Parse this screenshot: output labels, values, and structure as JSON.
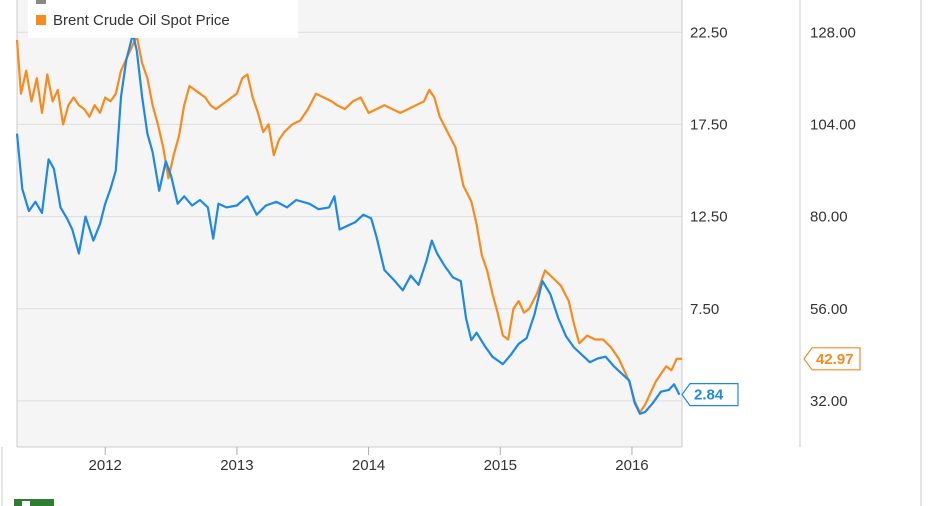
{
  "chart_data": {
    "type": "line",
    "legend": {
      "placement": "top-left"
    },
    "grid": {
      "horizontal": true,
      "vertical": false
    },
    "x_axis": {
      "range": [
        2011.33,
        2016.38
      ],
      "ticks": [
        {
          "value": 2012.0,
          "label": "2012"
        },
        {
          "value": 2013.0,
          "label": "2013"
        },
        {
          "value": 2014.0,
          "label": "2014"
        },
        {
          "value": 2015.0,
          "label": "2015"
        },
        {
          "value": 2016.0,
          "label": "2016"
        }
      ]
    },
    "y_axis_left": {
      "range": [
        0.0,
        24.25
      ],
      "ticks": [
        {
          "value": 22.5,
          "label": "22.50"
        },
        {
          "value": 17.5,
          "label": "17.50"
        },
        {
          "value": 12.5,
          "label": "12.50"
        },
        {
          "value": 7.5,
          "label": "7.50"
        },
        {
          "value": 2.5,
          "label": ""
        }
      ]
    },
    "y_axis_right": {
      "range": [
        20.0,
        136.4
      ],
      "ticks": [
        {
          "value": 128,
          "label": "128.00"
        },
        {
          "value": 104,
          "label": "104.00"
        },
        {
          "value": 80,
          "label": "80.00"
        },
        {
          "value": 56,
          "label": "56.00"
        },
        {
          "value": 32,
          "label": "32.00"
        }
      ]
    },
    "series": [
      {
        "name": "",
        "axis": "left",
        "color": "#1e88e5",
        "end_label": "2.84",
        "points": [
          [
            2011.33,
            17.0
          ],
          [
            2011.37,
            14.0
          ],
          [
            2011.42,
            12.8
          ],
          [
            2011.47,
            13.3
          ],
          [
            2011.52,
            12.7
          ],
          [
            2011.57,
            15.6
          ],
          [
            2011.61,
            15.1
          ],
          [
            2011.66,
            13.0
          ],
          [
            2011.71,
            12.4
          ],
          [
            2011.75,
            11.8
          ],
          [
            2011.8,
            10.5
          ],
          [
            2011.85,
            12.5
          ],
          [
            2011.91,
            11.2
          ],
          [
            2011.96,
            12.1
          ],
          [
            2012.0,
            13.2
          ],
          [
            2012.04,
            14.0
          ],
          [
            2012.08,
            15.0
          ],
          [
            2012.12,
            19.0
          ],
          [
            2012.16,
            21.0
          ],
          [
            2012.21,
            22.4
          ],
          [
            2012.24,
            21.5
          ],
          [
            2012.28,
            19.0
          ],
          [
            2012.32,
            17.0
          ],
          [
            2012.36,
            16.0
          ],
          [
            2012.41,
            13.9
          ],
          [
            2012.46,
            15.5
          ],
          [
            2012.5,
            14.7
          ],
          [
            2012.55,
            13.2
          ],
          [
            2012.6,
            13.6
          ],
          [
            2012.66,
            13.1
          ],
          [
            2012.72,
            13.4
          ],
          [
            2012.78,
            13.0
          ],
          [
            2012.82,
            11.3
          ],
          [
            2012.86,
            13.2
          ],
          [
            2012.92,
            13.0
          ],
          [
            2013.0,
            13.1
          ],
          [
            2013.08,
            13.6
          ],
          [
            2013.15,
            12.6
          ],
          [
            2013.22,
            13.1
          ],
          [
            2013.3,
            13.3
          ],
          [
            2013.38,
            13.0
          ],
          [
            2013.45,
            13.4
          ],
          [
            2013.55,
            13.2
          ],
          [
            2013.62,
            12.9
          ],
          [
            2013.7,
            13.0
          ],
          [
            2013.74,
            13.6
          ],
          [
            2013.78,
            11.8
          ],
          [
            2013.84,
            12.0
          ],
          [
            2013.9,
            12.2
          ],
          [
            2013.96,
            12.6
          ],
          [
            2014.02,
            12.4
          ],
          [
            2014.06,
            11.4
          ],
          [
            2014.12,
            9.6
          ],
          [
            2014.2,
            9.0
          ],
          [
            2014.26,
            8.5
          ],
          [
            2014.32,
            9.3
          ],
          [
            2014.38,
            8.8
          ],
          [
            2014.44,
            10.1
          ],
          [
            2014.48,
            11.2
          ],
          [
            2014.52,
            10.5
          ],
          [
            2014.58,
            9.8
          ],
          [
            2014.64,
            9.2
          ],
          [
            2014.7,
            9.0
          ],
          [
            2014.74,
            7.0
          ],
          [
            2014.78,
            5.8
          ],
          [
            2014.82,
            6.2
          ],
          [
            2014.88,
            5.5
          ],
          [
            2014.94,
            4.9
          ],
          [
            2015.02,
            4.5
          ],
          [
            2015.08,
            5.0
          ],
          [
            2015.14,
            5.6
          ],
          [
            2015.2,
            5.9
          ],
          [
            2015.26,
            7.2
          ],
          [
            2015.32,
            9.0
          ],
          [
            2015.38,
            8.3
          ],
          [
            2015.44,
            7.0
          ],
          [
            2015.5,
            6.0
          ],
          [
            2015.56,
            5.4
          ],
          [
            2015.62,
            5.0
          ],
          [
            2015.68,
            4.6
          ],
          [
            2015.74,
            4.8
          ],
          [
            2015.8,
            4.9
          ],
          [
            2015.86,
            4.4
          ],
          [
            2015.92,
            4.0
          ],
          [
            2015.98,
            3.6
          ],
          [
            2016.02,
            2.4
          ],
          [
            2016.06,
            1.8
          ],
          [
            2016.1,
            1.9
          ],
          [
            2016.16,
            2.4
          ],
          [
            2016.22,
            3.0
          ],
          [
            2016.28,
            3.1
          ],
          [
            2016.32,
            3.4
          ],
          [
            2016.36,
            2.84
          ]
        ]
      },
      {
        "name": "Brent Crude Oil Spot Price",
        "axis": "right",
        "color": "#f68b1f",
        "end_label": "42.97",
        "points": [
          [
            2011.33,
            126.0
          ],
          [
            2011.36,
            112.0
          ],
          [
            2011.4,
            118.0
          ],
          [
            2011.44,
            110.0
          ],
          [
            2011.48,
            116.0
          ],
          [
            2011.52,
            107.0
          ],
          [
            2011.56,
            117.0
          ],
          [
            2011.6,
            110.0
          ],
          [
            2011.64,
            113.0
          ],
          [
            2011.68,
            104.0
          ],
          [
            2011.72,
            109.0
          ],
          [
            2011.76,
            111.0
          ],
          [
            2011.8,
            109.0
          ],
          [
            2011.84,
            108.0
          ],
          [
            2011.88,
            106.0
          ],
          [
            2011.92,
            109.0
          ],
          [
            2011.96,
            107.0
          ],
          [
            2012.0,
            111.0
          ],
          [
            2012.04,
            110.0
          ],
          [
            2012.08,
            112.0
          ],
          [
            2012.12,
            118.0
          ],
          [
            2012.16,
            121.0
          ],
          [
            2012.2,
            124.0
          ],
          [
            2012.24,
            127.0
          ],
          [
            2012.28,
            120.0
          ],
          [
            2012.32,
            116.0
          ],
          [
            2012.36,
            109.0
          ],
          [
            2012.4,
            104.0
          ],
          [
            2012.44,
            98.0
          ],
          [
            2012.48,
            90.0
          ],
          [
            2012.52,
            96.0
          ],
          [
            2012.56,
            101.0
          ],
          [
            2012.6,
            109.0
          ],
          [
            2012.64,
            114.0
          ],
          [
            2012.68,
            113.0
          ],
          [
            2012.72,
            112.0
          ],
          [
            2012.76,
            111.0
          ],
          [
            2012.8,
            109.0
          ],
          [
            2012.84,
            108.0
          ],
          [
            2012.88,
            109.0
          ],
          [
            2012.92,
            110.0
          ],
          [
            2012.96,
            111.0
          ],
          [
            2013.0,
            112.0
          ],
          [
            2013.04,
            116.0
          ],
          [
            2013.08,
            117.0
          ],
          [
            2013.12,
            111.0
          ],
          [
            2013.16,
            107.0
          ],
          [
            2013.2,
            102.0
          ],
          [
            2013.24,
            104.0
          ],
          [
            2013.28,
            96.0
          ],
          [
            2013.32,
            100.0
          ],
          [
            2013.36,
            102.0
          ],
          [
            2013.42,
            104.0
          ],
          [
            2013.48,
            105.0
          ],
          [
            2013.54,
            108.0
          ],
          [
            2013.6,
            112.0
          ],
          [
            2013.66,
            111.0
          ],
          [
            2013.72,
            110.0
          ],
          [
            2013.76,
            109.0
          ],
          [
            2013.82,
            108.0
          ],
          [
            2013.88,
            110.0
          ],
          [
            2013.94,
            111.0
          ],
          [
            2014.0,
            107.0
          ],
          [
            2014.06,
            108.0
          ],
          [
            2014.12,
            109.0
          ],
          [
            2014.18,
            108.0
          ],
          [
            2014.24,
            107.0
          ],
          [
            2014.3,
            108.0
          ],
          [
            2014.36,
            109.0
          ],
          [
            2014.42,
            110.0
          ],
          [
            2014.46,
            113.0
          ],
          [
            2014.5,
            111.0
          ],
          [
            2014.54,
            106.0
          ],
          [
            2014.6,
            102.0
          ],
          [
            2014.66,
            98.0
          ],
          [
            2014.72,
            88.0
          ],
          [
            2014.78,
            84.0
          ],
          [
            2014.82,
            78.0
          ],
          [
            2014.86,
            70.0
          ],
          [
            2014.9,
            66.0
          ],
          [
            2014.94,
            60.0
          ],
          [
            2014.98,
            55.0
          ],
          [
            2015.02,
            49.0
          ],
          [
            2015.06,
            48.0
          ],
          [
            2015.1,
            56.0
          ],
          [
            2015.14,
            58.0
          ],
          [
            2015.18,
            55.0
          ],
          [
            2015.22,
            56.0
          ],
          [
            2015.28,
            60.0
          ],
          [
            2015.34,
            66.0
          ],
          [
            2015.4,
            64.0
          ],
          [
            2015.46,
            62.0
          ],
          [
            2015.52,
            58.0
          ],
          [
            2015.56,
            52.0
          ],
          [
            2015.6,
            47.0
          ],
          [
            2015.66,
            49.0
          ],
          [
            2015.72,
            48.0
          ],
          [
            2015.78,
            48.0
          ],
          [
            2015.84,
            46.0
          ],
          [
            2015.9,
            43.0
          ],
          [
            2015.94,
            40.0
          ],
          [
            2015.98,
            37.0
          ],
          [
            2016.02,
            32.0
          ],
          [
            2016.06,
            29.0
          ],
          [
            2016.1,
            31.0
          ],
          [
            2016.14,
            34.0
          ],
          [
            2016.18,
            37.0
          ],
          [
            2016.22,
            39.0
          ],
          [
            2016.26,
            41.0
          ],
          [
            2016.3,
            40.0
          ],
          [
            2016.34,
            43.0
          ],
          [
            2016.38,
            42.97
          ]
        ]
      }
    ]
  }
}
